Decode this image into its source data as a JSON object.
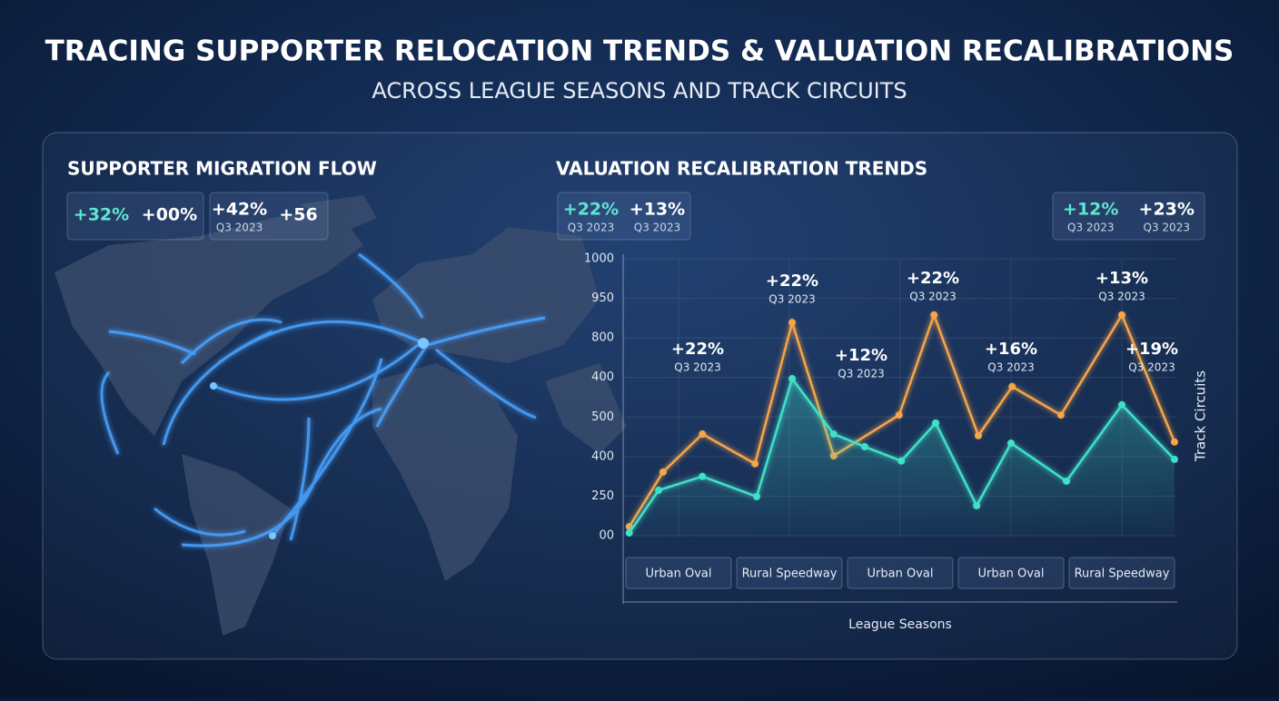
{
  "header": {
    "title": "TRACING SUPPORTER RELOCATION TRENDS & VALUATION RECALIBRATIONS",
    "subtitle": "ACROSS LEAGUE SEASONS AND TRACK CIRCUITS"
  },
  "map_panel": {
    "title": "SUPPORTER MIGRATION FLOW",
    "badges": [
      [
        {
          "value": "+32%"
        },
        {
          "value": "+00%"
        }
      ],
      [
        {
          "value": "+42%",
          "sub": "Q3 2023"
        },
        {
          "value": "+56"
        }
      ]
    ]
  },
  "chart_data": {
    "type": "line",
    "title": "VALUATION RECALIBRATION TRENDS",
    "badges": [
      [
        {
          "value": "+22%",
          "sub": "Q3 2023"
        },
        {
          "value": "+13%",
          "sub": "Q3 2023"
        }
      ],
      [
        {
          "value": "+12%",
          "sub": "Q3 2023"
        },
        {
          "value": "+23%",
          "sub": "Q3 2023"
        }
      ]
    ],
    "x_label": "League Seasons",
    "y_label": "Track Circuits",
    "xlim": [
      0,
      10
    ],
    "xticks": [
      {
        "value": 1,
        "label": "Urban Oval"
      },
      {
        "value": 3,
        "label": "Rural Speedway"
      },
      {
        "value": 5,
        "label": "Urban Oval"
      },
      {
        "value": 7,
        "label": "Urban Oval"
      },
      {
        "value": 9,
        "label": "Rural Speedway"
      }
    ],
    "ylim": [
      300,
      1000
    ],
    "yticks": [
      1000,
      {
        "value": 900,
        "label": "950"
      },
      800,
      {
        "value": 700,
        "label": "400"
      },
      {
        "value": 600,
        "label": "500"
      },
      {
        "value": 500,
        "label": "400"
      },
      {
        "value": 400,
        "label": "250"
      },
      {
        "value": 300,
        "label": "00"
      }
    ],
    "grid": true,
    "series": [
      {
        "color": "#f5a54a",
        "x": [
          0.11,
          0.72,
          1.43,
          2.38,
          3.05,
          3.8,
          4.98,
          5.61,
          6.41,
          7.02,
          7.9,
          9.0,
          9.95
        ],
        "values": [
          323,
          461,
          557,
          482,
          839,
          502,
          605,
          858,
          553,
          677,
          605,
          858,
          537
        ]
      },
      {
        "color": "#3fe0c8",
        "x": [
          0.11,
          0.64,
          1.43,
          2.41,
          3.05,
          3.8,
          4.36,
          5.02,
          5.64,
          6.38,
          7.0,
          8.0,
          9.0,
          9.95
        ],
        "values": [
          307,
          415,
          450,
          399,
          697,
          557,
          525,
          489,
          585,
          376,
          534,
          438,
          631,
          493
        ]
      }
    ],
    "annotations": [
      {
        "text": "+22%",
        "sub": "Q3 2023"
      },
      {
        "text": "+22%",
        "sub": "Q3 2023"
      },
      {
        "text": "+12%",
        "sub": "Q3 2023"
      },
      {
        "text": "+22%",
        "sub": "Q3 2023"
      },
      {
        "text": "+16%",
        "sub": "Q3 2023"
      },
      {
        "text": "+13%",
        "sub": "Q3 2023"
      },
      {
        "text": "+19%",
        "sub": "Q3 2023"
      }
    ]
  }
}
